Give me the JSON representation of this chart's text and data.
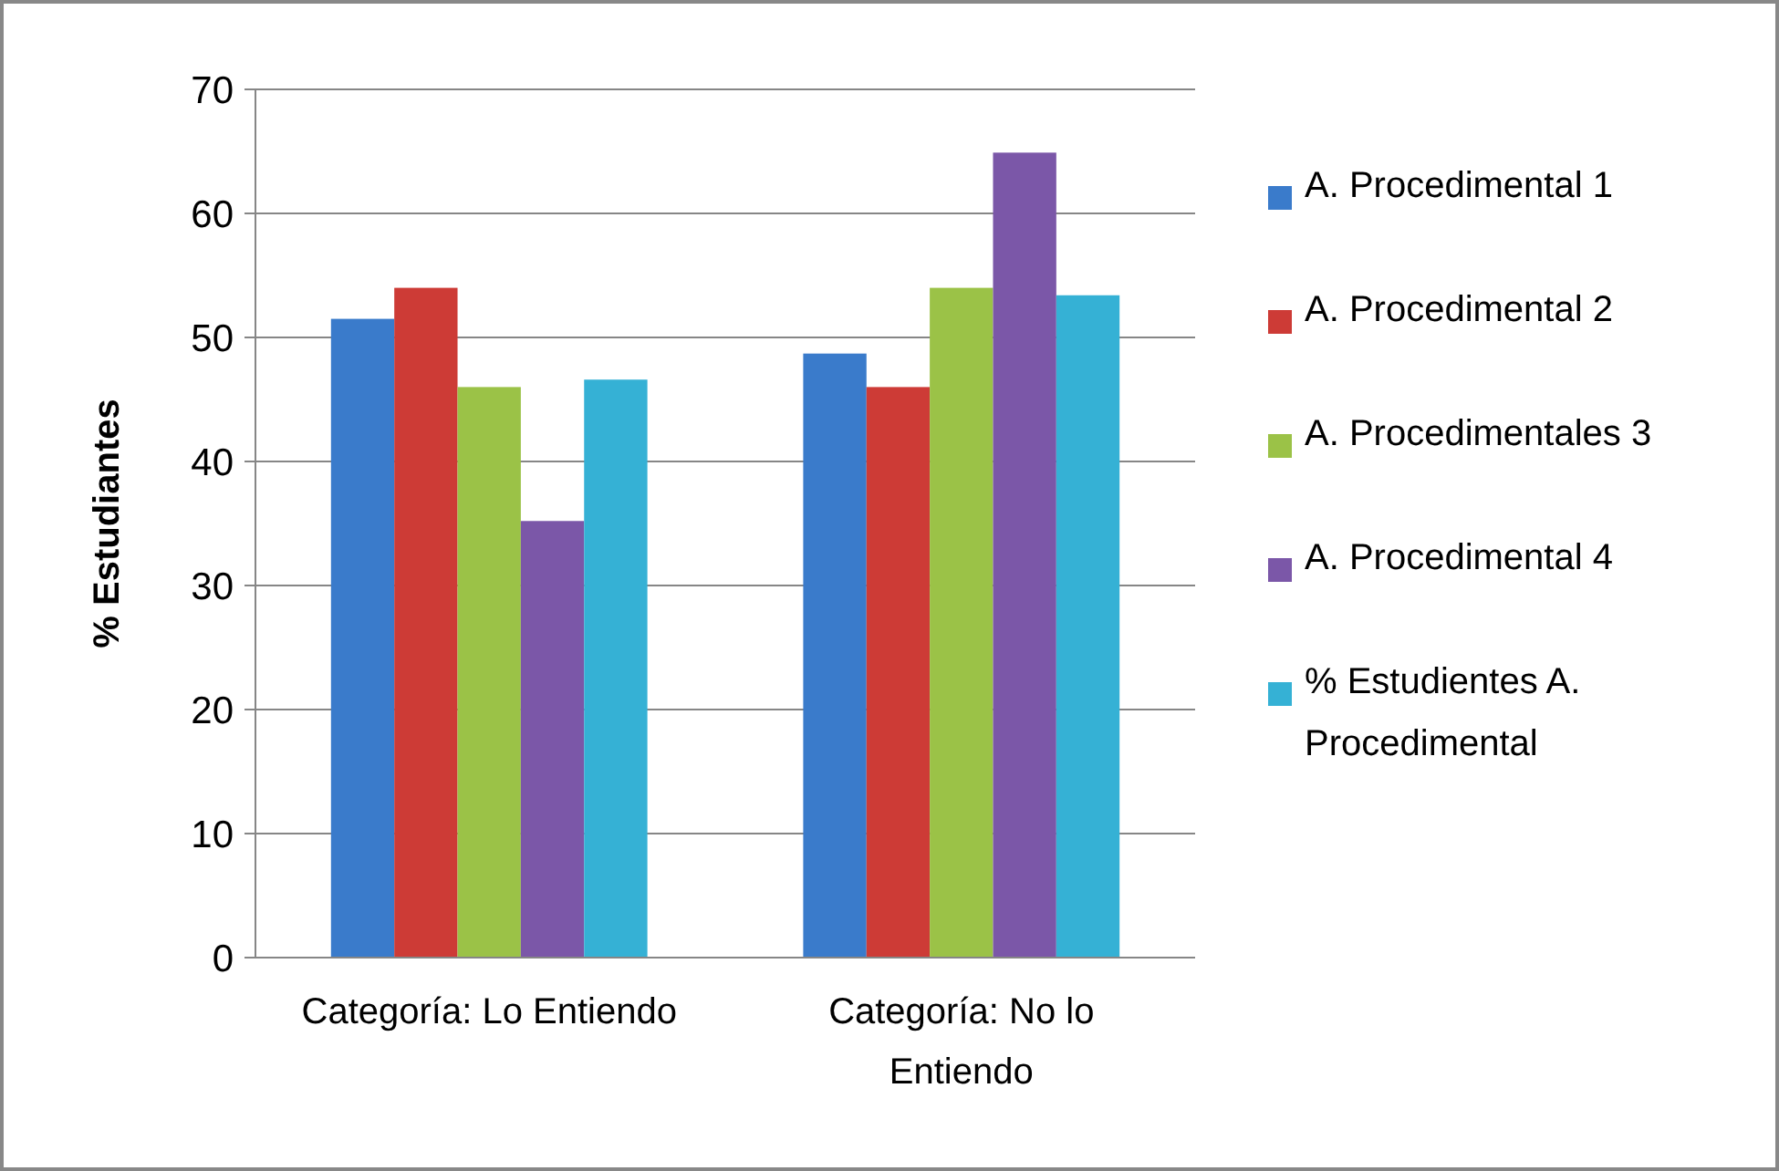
{
  "chart_data": {
    "type": "bar",
    "ylabel": "% Estudiantes",
    "categories": [
      "Categoría: Lo Entiendo",
      "Categoría: No lo Entiendo"
    ],
    "series": [
      {
        "name": "A. Procedimental 1",
        "color": "#3a7bcb",
        "values": [
          51.5,
          48.7
        ]
      },
      {
        "name": "A. Procedimental 2",
        "color": "#cd3b36",
        "values": [
          54,
          46
        ]
      },
      {
        "name": "A. Procedimentales 3",
        "color": "#9bc247",
        "values": [
          46,
          54
        ]
      },
      {
        "name": "A. Procedimental 4",
        "color": "#7b57a8",
        "values": [
          35.2,
          64.9
        ]
      },
      {
        "name": "% Estudientes A. Procedimental",
        "color": "#35b1d5",
        "values": [
          46.6,
          53.4
        ]
      }
    ],
    "ylim": [
      0,
      70
    ],
    "yticks": [
      0,
      10,
      20,
      30,
      40,
      50,
      60,
      70
    ],
    "grid": "y",
    "legend": "right"
  }
}
